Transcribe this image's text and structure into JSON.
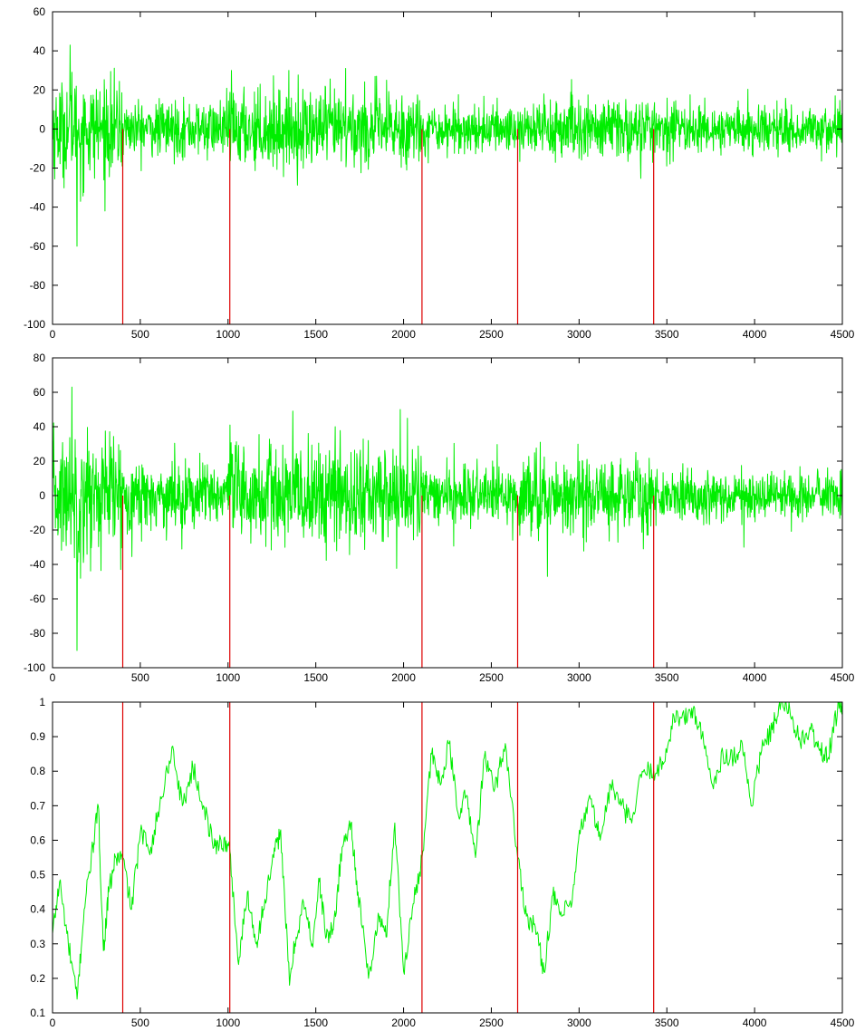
{
  "colors": {
    "signal": "#00ee00",
    "changepoint": "#dd0000",
    "axes": "#000000",
    "background": "#ffffff"
  },
  "chart_data": [
    {
      "type": "line",
      "title": "",
      "xlabel": "",
      "ylabel": "",
      "xlim": [
        0,
        4500
      ],
      "ylim": [
        -100,
        60
      ],
      "xticks": [
        "0",
        "500",
        "1000",
        "1500",
        "2000",
        "2500",
        "3000",
        "3500",
        "4000",
        "4500"
      ],
      "yticks": [
        "-100",
        "-80",
        "-60",
        "-40",
        "-20",
        "0",
        "20",
        "40",
        "60"
      ],
      "grid": false,
      "legend": "none",
      "changepoints": [
        400,
        1010,
        2105,
        2650,
        3425
      ],
      "series": [
        {
          "kind": "noise",
          "x_range": [
            0,
            4500
          ],
          "segments": [
            {
              "start": 0,
              "end": 400,
              "amplitude": 12
            },
            {
              "start": 400,
              "end": 1010,
              "amplitude": 7
            },
            {
              "start": 1010,
              "end": 2105,
              "amplitude": 10
            },
            {
              "start": 2105,
              "end": 2650,
              "amplitude": 6
            },
            {
              "start": 2650,
              "end": 3425,
              "amplitude": 8
            },
            {
              "start": 3425,
              "end": 4500,
              "amplitude": 6
            }
          ],
          "extremes": [
            [
              100,
              43
            ],
            [
              110,
              29
            ],
            [
              140,
              -60
            ],
            [
              160,
              -37
            ],
            [
              1670,
              31
            ],
            [
              1020,
              30
            ],
            [
              2800,
              18
            ],
            [
              3540,
              14
            ],
            [
              4460,
              17
            ]
          ]
        }
      ]
    },
    {
      "type": "line",
      "title": "",
      "xlabel": "",
      "ylabel": "",
      "xlim": [
        0,
        4500
      ],
      "ylim": [
        -100,
        80
      ],
      "xticks": [
        "0",
        "500",
        "1000",
        "1500",
        "2000",
        "2500",
        "3000",
        "3500",
        "4000",
        "4500"
      ],
      "yticks": [
        "-100",
        "-80",
        "-60",
        "-40",
        "-20",
        "0",
        "20",
        "40",
        "60",
        "80"
      ],
      "grid": false,
      "legend": "none",
      "changepoints": [
        400,
        1010,
        2105,
        2650,
        3425
      ],
      "series": [
        {
          "kind": "noise",
          "x_range": [
            0,
            4500
          ],
          "segments": [
            {
              "start": 0,
              "end": 400,
              "amplitude": 18
            },
            {
              "start": 400,
              "end": 1010,
              "amplitude": 10
            },
            {
              "start": 1010,
              "end": 2105,
              "amplitude": 15
            },
            {
              "start": 2105,
              "end": 2650,
              "amplitude": 8
            },
            {
              "start": 2650,
              "end": 3425,
              "amplitude": 11
            },
            {
              "start": 3425,
              "end": 4500,
              "amplitude": 7
            }
          ],
          "extremes": [
            [
              110,
              63
            ],
            [
              140,
              -90
            ],
            [
              160,
              -48
            ],
            [
              1980,
              50
            ],
            [
              1010,
              41
            ],
            [
              1610,
              40
            ],
            [
              2780,
              31
            ],
            [
              2820,
              -47
            ],
            [
              3940,
              -30
            ]
          ]
        }
      ]
    },
    {
      "type": "line",
      "title": "",
      "xlabel": "",
      "ylabel": "",
      "xlim": [
        0,
        4500
      ],
      "ylim": [
        0.1,
        1
      ],
      "xticks": [
        "0",
        "500",
        "1000",
        "1500",
        "2000",
        "2500",
        "3000",
        "3500",
        "4000",
        "4500"
      ],
      "yticks": [
        "0.1",
        "0.2",
        "0.3",
        "0.4",
        "0.5",
        "0.6",
        "0.7",
        "0.8",
        "0.9",
        "1"
      ],
      "grid": false,
      "legend": "none",
      "changepoints": [
        400,
        1010,
        2105,
        2650,
        3425
      ],
      "series": [
        {
          "kind": "path",
          "x": [
            0,
            40,
            90,
            140,
            180,
            230,
            260,
            290,
            320,
            360,
            400,
            450,
            500,
            560,
            620,
            680,
            740,
            800,
            860,
            920,
            960,
            1010,
            1060,
            1110,
            1160,
            1200,
            1260,
            1300,
            1350,
            1380,
            1430,
            1480,
            1520,
            1560,
            1600,
            1650,
            1700,
            1740,
            1800,
            1860,
            1900,
            1950,
            2000,
            2050,
            2105,
            2160,
            2210,
            2260,
            2310,
            2360,
            2410,
            2460,
            2520,
            2580,
            2650,
            2700,
            2750,
            2800,
            2850,
            2900,
            2960,
            3010,
            3070,
            3120,
            3180,
            3240,
            3300,
            3360,
            3425,
            3480,
            3540,
            3600,
            3650,
            3700,
            3760,
            3820,
            3880,
            3930,
            3980,
            4040,
            4100,
            4150,
            4200,
            4260,
            4320,
            4370,
            4420,
            4480,
            4500
          ],
          "y": [
            0.33,
            0.48,
            0.3,
            0.14,
            0.4,
            0.58,
            0.7,
            0.28,
            0.45,
            0.55,
            0.55,
            0.4,
            0.62,
            0.58,
            0.72,
            0.87,
            0.7,
            0.81,
            0.7,
            0.58,
            0.6,
            0.57,
            0.24,
            0.45,
            0.3,
            0.4,
            0.55,
            0.63,
            0.18,
            0.3,
            0.42,
            0.3,
            0.48,
            0.32,
            0.34,
            0.58,
            0.65,
            0.45,
            0.2,
            0.38,
            0.32,
            0.65,
            0.22,
            0.4,
            0.55,
            0.85,
            0.76,
            0.88,
            0.68,
            0.73,
            0.55,
            0.84,
            0.75,
            0.88,
            0.55,
            0.38,
            0.35,
            0.22,
            0.44,
            0.38,
            0.42,
            0.64,
            0.72,
            0.6,
            0.76,
            0.7,
            0.65,
            0.8,
            0.8,
            0.82,
            0.96,
            0.95,
            0.98,
            0.9,
            0.76,
            0.85,
            0.84,
            0.88,
            0.7,
            0.86,
            0.92,
            1.0,
            0.98,
            0.88,
            0.92,
            0.86,
            0.84,
            1.0,
            0.99
          ]
        }
      ]
    }
  ]
}
